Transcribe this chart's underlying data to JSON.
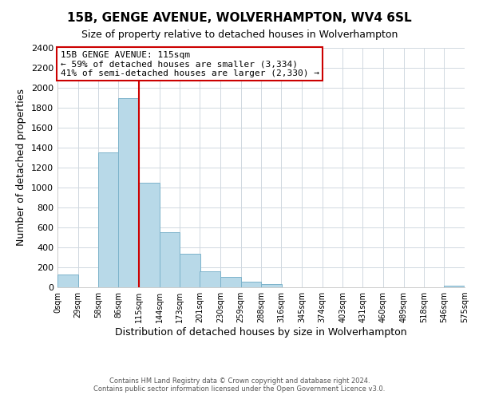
{
  "title": "15B, GENGE AVENUE, WOLVERHAMPTON, WV4 6SL",
  "subtitle": "Size of property relative to detached houses in Wolverhampton",
  "xlabel": "Distribution of detached houses by size in Wolverhampton",
  "ylabel": "Number of detached properties",
  "bar_left_edges": [
    0,
    29,
    58,
    86,
    115,
    144,
    173,
    201,
    230,
    259,
    288,
    316,
    345,
    374,
    403,
    431,
    460,
    489,
    518,
    546
  ],
  "bar_heights": [
    125,
    0,
    1350,
    1900,
    1050,
    550,
    340,
    160,
    105,
    60,
    30,
    0,
    0,
    0,
    0,
    0,
    0,
    0,
    0,
    20
  ],
  "bin_width": 29,
  "bar_color": "#b8d9e8",
  "bar_edge_color": "#7db3cb",
  "marker_x": 115,
  "marker_color": "#cc0000",
  "annotation_title": "15B GENGE AVENUE: 115sqm",
  "annotation_line1": "← 59% of detached houses are smaller (3,334)",
  "annotation_line2": "41% of semi-detached houses are larger (2,330) →",
  "annotation_box_color": "#ffffff",
  "annotation_box_edge": "#cc0000",
  "tick_labels": [
    "0sqm",
    "29sqm",
    "58sqm",
    "86sqm",
    "115sqm",
    "144sqm",
    "173sqm",
    "201sqm",
    "230sqm",
    "259sqm",
    "288sqm",
    "316sqm",
    "345sqm",
    "374sqm",
    "403sqm",
    "431sqm",
    "460sqm",
    "489sqm",
    "518sqm",
    "546sqm",
    "575sqm"
  ],
  "tick_positions": [
    0,
    29,
    58,
    86,
    115,
    144,
    173,
    201,
    230,
    259,
    288,
    316,
    345,
    374,
    403,
    431,
    460,
    489,
    518,
    546,
    575
  ],
  "yticks": [
    0,
    200,
    400,
    600,
    800,
    1000,
    1200,
    1400,
    1600,
    1800,
    2000,
    2200,
    2400
  ],
  "ylim": [
    0,
    2400
  ],
  "xlim": [
    0,
    575
  ],
  "footer1": "Contains HM Land Registry data © Crown copyright and database right 2024.",
  "footer2": "Contains public sector information licensed under the Open Government Licence v3.0.",
  "background_color": "#ffffff",
  "grid_color": "#d0d8e0"
}
